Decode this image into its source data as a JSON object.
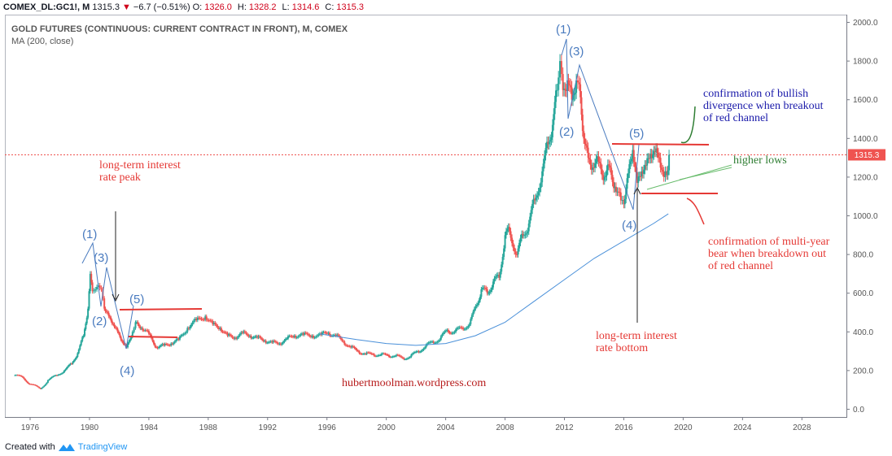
{
  "header": {
    "symbol": "COMEX_DL:GC1!, M",
    "price": "1315.3",
    "change_icon": "down-triangle",
    "change": "−6.7 (−0.51%)",
    "open_label": "O:",
    "open": "1326.0",
    "high_label": "H:",
    "high": "1328.2",
    "low_label": "L:",
    "low": "1314.6",
    "close_label": "C:",
    "close": "1315.3"
  },
  "legend": {
    "title": "GOLD FUTURES (CONTINUOUS: CURRENT CONTRACT IN FRONT), M, COMEX",
    "indicator": "MA (200, close)"
  },
  "footer": {
    "prefix": "Created with",
    "brand": "TradingView",
    "brand_icon": "tradingview-logo-icon"
  },
  "colors": {
    "up": "#26a69a",
    "down": "#ef5350",
    "ma": "#4a90d9",
    "wave": "#4a7bbf",
    "annotation_red": "#e53935",
    "annotation_blue": "#1a1aaa",
    "annotation_green": "#2e7d32"
  },
  "chart_data": {
    "type": "line",
    "title": "GOLD FUTURES (CONTINUOUS: CURRENT CONTRACT IN FRONT), M, COMEX",
    "xlim": [
      1974.3,
      2031.0
    ],
    "ylim": [
      -40,
      2040
    ],
    "x_ticks": [
      "1976",
      "1980",
      "1984",
      "1988",
      "1992",
      "1996",
      "2000",
      "2004",
      "2008",
      "2012",
      "2016",
      "2020",
      "2024",
      "2028"
    ],
    "y_ticks": [
      "2000.0",
      "1800.0",
      "1600.0",
      "1400.0",
      "1200.0",
      "1000.0",
      "800.0",
      "600.0",
      "400.0",
      "200.0",
      "0.0"
    ],
    "last_price": 1315.3,
    "grid": false,
    "series": [
      {
        "name": "",
        "style": "candles",
        "x": [
          1974.9,
          1975.5,
          1976.0,
          1976.7,
          1977.2,
          1977.8,
          1978.3,
          1978.8,
          1979.2,
          1979.6,
          1979.9,
          1980.05,
          1980.2,
          1980.4,
          1980.6,
          1980.8,
          1981.0,
          1981.3,
          1981.6,
          1981.9,
          1982.2,
          1982.5,
          1982.9,
          1983.1,
          1983.5,
          1984.0,
          1984.5,
          1985.0,
          1985.5,
          1986.0,
          1986.6,
          1987.2,
          1987.8,
          1988.3,
          1988.8,
          1989.3,
          1989.8,
          1990.3,
          1990.8,
          1991.3,
          1991.8,
          1992.3,
          1992.8,
          1993.3,
          1993.8,
          1994.4,
          1995.0,
          1995.6,
          1996.1,
          1996.6,
          1997.1,
          1997.6,
          1998.1,
          1998.6,
          1999.1,
          1999.6,
          2000.1,
          2000.6,
          2001.1,
          2001.6,
          2002.1,
          2002.6,
          2003.1,
          2003.6,
          2004.1,
          2004.6,
          2005.1,
          2005.6,
          2006.1,
          2006.4,
          2006.8,
          2007.2,
          2007.6,
          2008.0,
          2008.3,
          2008.8,
          2009.2,
          2009.6,
          2010.0,
          2010.5,
          2010.9,
          2011.2,
          2011.5,
          2011.7,
          2011.9,
          2012.2,
          2012.5,
          2012.8,
          2013.0,
          2013.3,
          2013.6,
          2013.9,
          2014.3,
          2014.7,
          2015.0,
          2015.4,
          2015.8,
          2016.0,
          2016.3,
          2016.6,
          2016.9,
          2017.2,
          2017.5,
          2017.8,
          2018.1,
          2018.4,
          2018.7,
          2018.9,
          2019.05
        ],
        "values": [
          175,
          165,
          130,
          105,
          150,
          175,
          200,
          235,
          290,
          380,
          520,
          700,
          610,
          620,
          640,
          620,
          520,
          480,
          440,
          400,
          350,
          320,
          400,
          450,
          420,
          390,
          320,
          330,
          340,
          360,
          420,
          460,
          480,
          440,
          420,
          380,
          370,
          395,
          380,
          370,
          355,
          345,
          340,
          365,
          380,
          385,
          380,
          385,
          395,
          380,
          350,
          320,
          300,
          285,
          285,
          280,
          280,
          275,
          265,
          270,
          300,
          320,
          350,
          360,
          410,
          400,
          420,
          440,
          540,
          620,
          600,
          660,
          680,
          900,
          920,
          800,
          900,
          960,
          1080,
          1230,
          1370,
          1470,
          1650,
          1800,
          1650,
          1700,
          1600,
          1700,
          1680,
          1400,
          1300,
          1250,
          1280,
          1200,
          1260,
          1150,
          1080,
          1060,
          1220,
          1340,
          1170,
          1230,
          1260,
          1320,
          1330,
          1300,
          1200,
          1210,
          1315.3
        ]
      },
      {
        "name": "MA (200, close)",
        "style": "line",
        "x": [
          1995.5,
          1998,
          2000,
          2002,
          2004,
          2006,
          2008,
          2010,
          2012,
          2014,
          2016,
          2018,
          2019
        ],
        "values": [
          390,
          360,
          340,
          330,
          340,
          380,
          450,
          560,
          670,
          780,
          870,
          960,
          1010
        ]
      }
    ],
    "annotations": {
      "wave_labels_1980": [
        "(1)",
        "(2)",
        "(3)",
        "(4)",
        "(5)"
      ],
      "wave_labels_2011": [
        "(1)",
        "(2)",
        "(3)",
        "(4)",
        "(5)"
      ],
      "note_rate_peak": "long-term interest rate peak",
      "note_rate_peak_lines": [
        "long-term interest",
        "rate peak"
      ],
      "note_rate_bottom_lines": [
        "long-term interest",
        "rate bottom"
      ],
      "note_bull_lines": [
        "confirmation of bullish",
        "divergence when breakout",
        "of red channel"
      ],
      "note_bear_lines": [
        "confirmation of multi-year",
        "bear when breakdown out",
        "of red channel"
      ],
      "note_higher_lows": "higher lows",
      "watermark": "hubertmoolman.wordpress.com"
    }
  }
}
